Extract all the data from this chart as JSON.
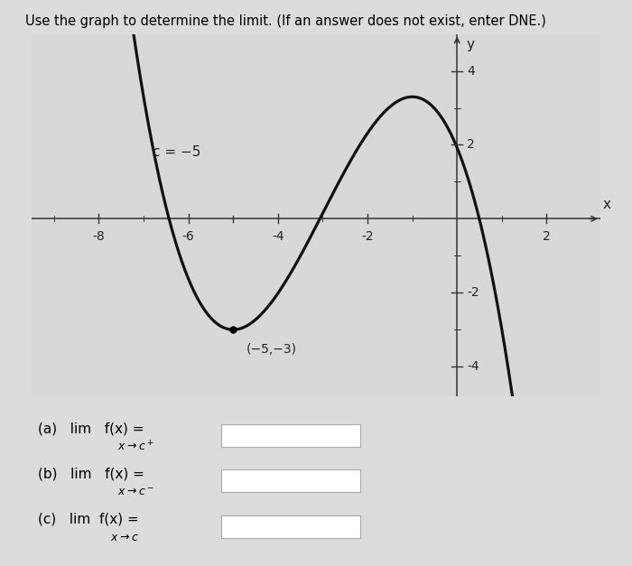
{
  "title": "Use the graph to determine the limit. (If an answer does not exist, enter DNE.)",
  "c_label": "c = −5",
  "min_point_label": "(−5,−3)",
  "min_point": [
    -5,
    -3
  ],
  "xlim": [
    -9.5,
    3.2
  ],
  "ylim": [
    -4.8,
    5.0
  ],
  "xticks": [
    -8,
    -6,
    -4,
    -2,
    2
  ],
  "yticks": [
    -4,
    -2,
    2,
    4
  ],
  "xlabel": "x",
  "ylabel": "y",
  "curve_color": "#111111",
  "background_color": "#dcdcdc",
  "plot_bg_color": "#d8d8d8",
  "axes_color": "#333333",
  "tick_color": "#333333",
  "curve_A": -0.196875,
  "text_color": "#222222",
  "max_y": 3.3,
  "max_x": -1.0
}
